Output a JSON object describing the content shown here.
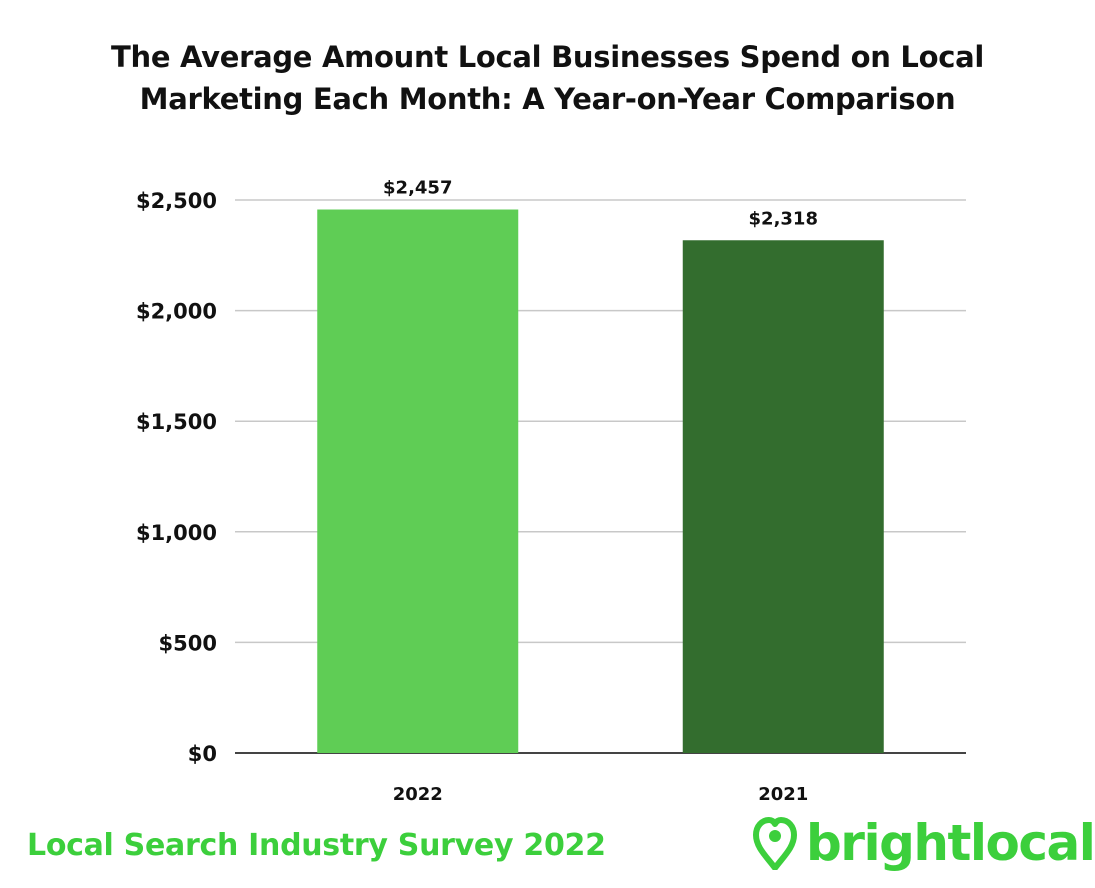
{
  "title_lines": [
    "The Average Amount Local Businesses Spend on Local",
    "Marketing Each Month: A Year-on-Year Comparison"
  ],
  "chart_data": {
    "type": "bar",
    "title": "The Average Amount Local Businesses Spend on Local Marketing Each Month: A Year-on-Year Comparison",
    "categories": [
      "2022",
      "2021"
    ],
    "values": [
      2457,
      2318
    ],
    "data_labels": [
      "$2,457",
      "$2,318"
    ],
    "bar_colors": [
      "#5fcd55",
      "#336d2e"
    ],
    "ylim": [
      0,
      2500
    ],
    "yticks": [
      0,
      500,
      1000,
      1500,
      2000,
      2500
    ],
    "ytick_labels": [
      "$0",
      "$500",
      "$1,000",
      "$1,500",
      "$2,000",
      "$2,500"
    ],
    "grid": true,
    "legend": "none"
  },
  "footer": {
    "survey_label": "Local Search Industry Survey 2022",
    "brand": "brightlocal",
    "brand_icon": "heart-location-pin-icon",
    "brand_color": "#3ccf3c"
  }
}
